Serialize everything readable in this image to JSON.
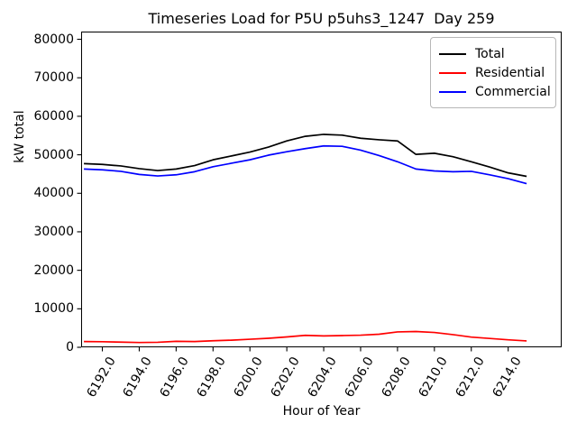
{
  "figure": {
    "title": "Timeseries Load for P5U p5uhs3_1247  Day 259",
    "background": "#ffffff"
  },
  "chart_data": {
    "type": "line",
    "title": "Timeseries Load for P5U p5uhs3_1247  Day 259",
    "xlabel": "Hour of Year",
    "ylabel": "kW total",
    "grid": false,
    "legend_position": "upper right",
    "xlim": [
      6190.85,
      6216.9
    ],
    "ylim": [
      0,
      82000
    ],
    "x": [
      6191,
      6192,
      6193,
      6194,
      6195,
      6196,
      6197,
      6198,
      6199,
      6200,
      6201,
      6202,
      6203,
      6204,
      6205,
      6206,
      6207,
      6208,
      6209,
      6210,
      6211,
      6212,
      6213,
      6214,
      6215
    ],
    "series": [
      {
        "name": "Total",
        "color": "#000000",
        "values": [
          47700,
          47500,
          47100,
          46400,
          45900,
          46300,
          47200,
          48700,
          49700,
          50700,
          52000,
          53600,
          54800,
          55300,
          55100,
          54300,
          53900,
          53600,
          50100,
          50400,
          49500,
          48200,
          46800,
          45300,
          44400
        ]
      },
      {
        "name": "Residential",
        "color": "#ff0000",
        "values": [
          1500,
          1450,
          1350,
          1250,
          1300,
          1550,
          1500,
          1700,
          1850,
          2100,
          2350,
          2700,
          3100,
          2950,
          3050,
          3150,
          3400,
          4000,
          4100,
          3850,
          3300,
          2650,
          2300,
          1950,
          1650
        ]
      },
      {
        "name": "Commercial",
        "color": "#0000ff",
        "values": [
          46300,
          46100,
          45700,
          44900,
          44500,
          44800,
          45600,
          46900,
          47800,
          48700,
          49900,
          50800,
          51600,
          52300,
          52200,
          51200,
          49800,
          48200,
          46300,
          45800,
          45600,
          45700,
          44800,
          43800,
          42500
        ]
      }
    ],
    "xticks": {
      "values": [
        6192,
        6194,
        6196,
        6198,
        6200,
        6202,
        6204,
        6206,
        6208,
        6210,
        6212,
        6214
      ],
      "labels": [
        "6192.0",
        "6194.0",
        "6196.0",
        "6198.0",
        "6200.0",
        "6202.0",
        "6204.0",
        "6206.0",
        "6208.0",
        "6210.0",
        "6212.0",
        "6214.0"
      ]
    },
    "yticks": {
      "values": [
        0,
        10000,
        20000,
        30000,
        40000,
        50000,
        60000,
        70000,
        80000
      ],
      "labels": [
        "0",
        "10000",
        "20000",
        "30000",
        "40000",
        "50000",
        "60000",
        "70000",
        "80000"
      ]
    }
  }
}
